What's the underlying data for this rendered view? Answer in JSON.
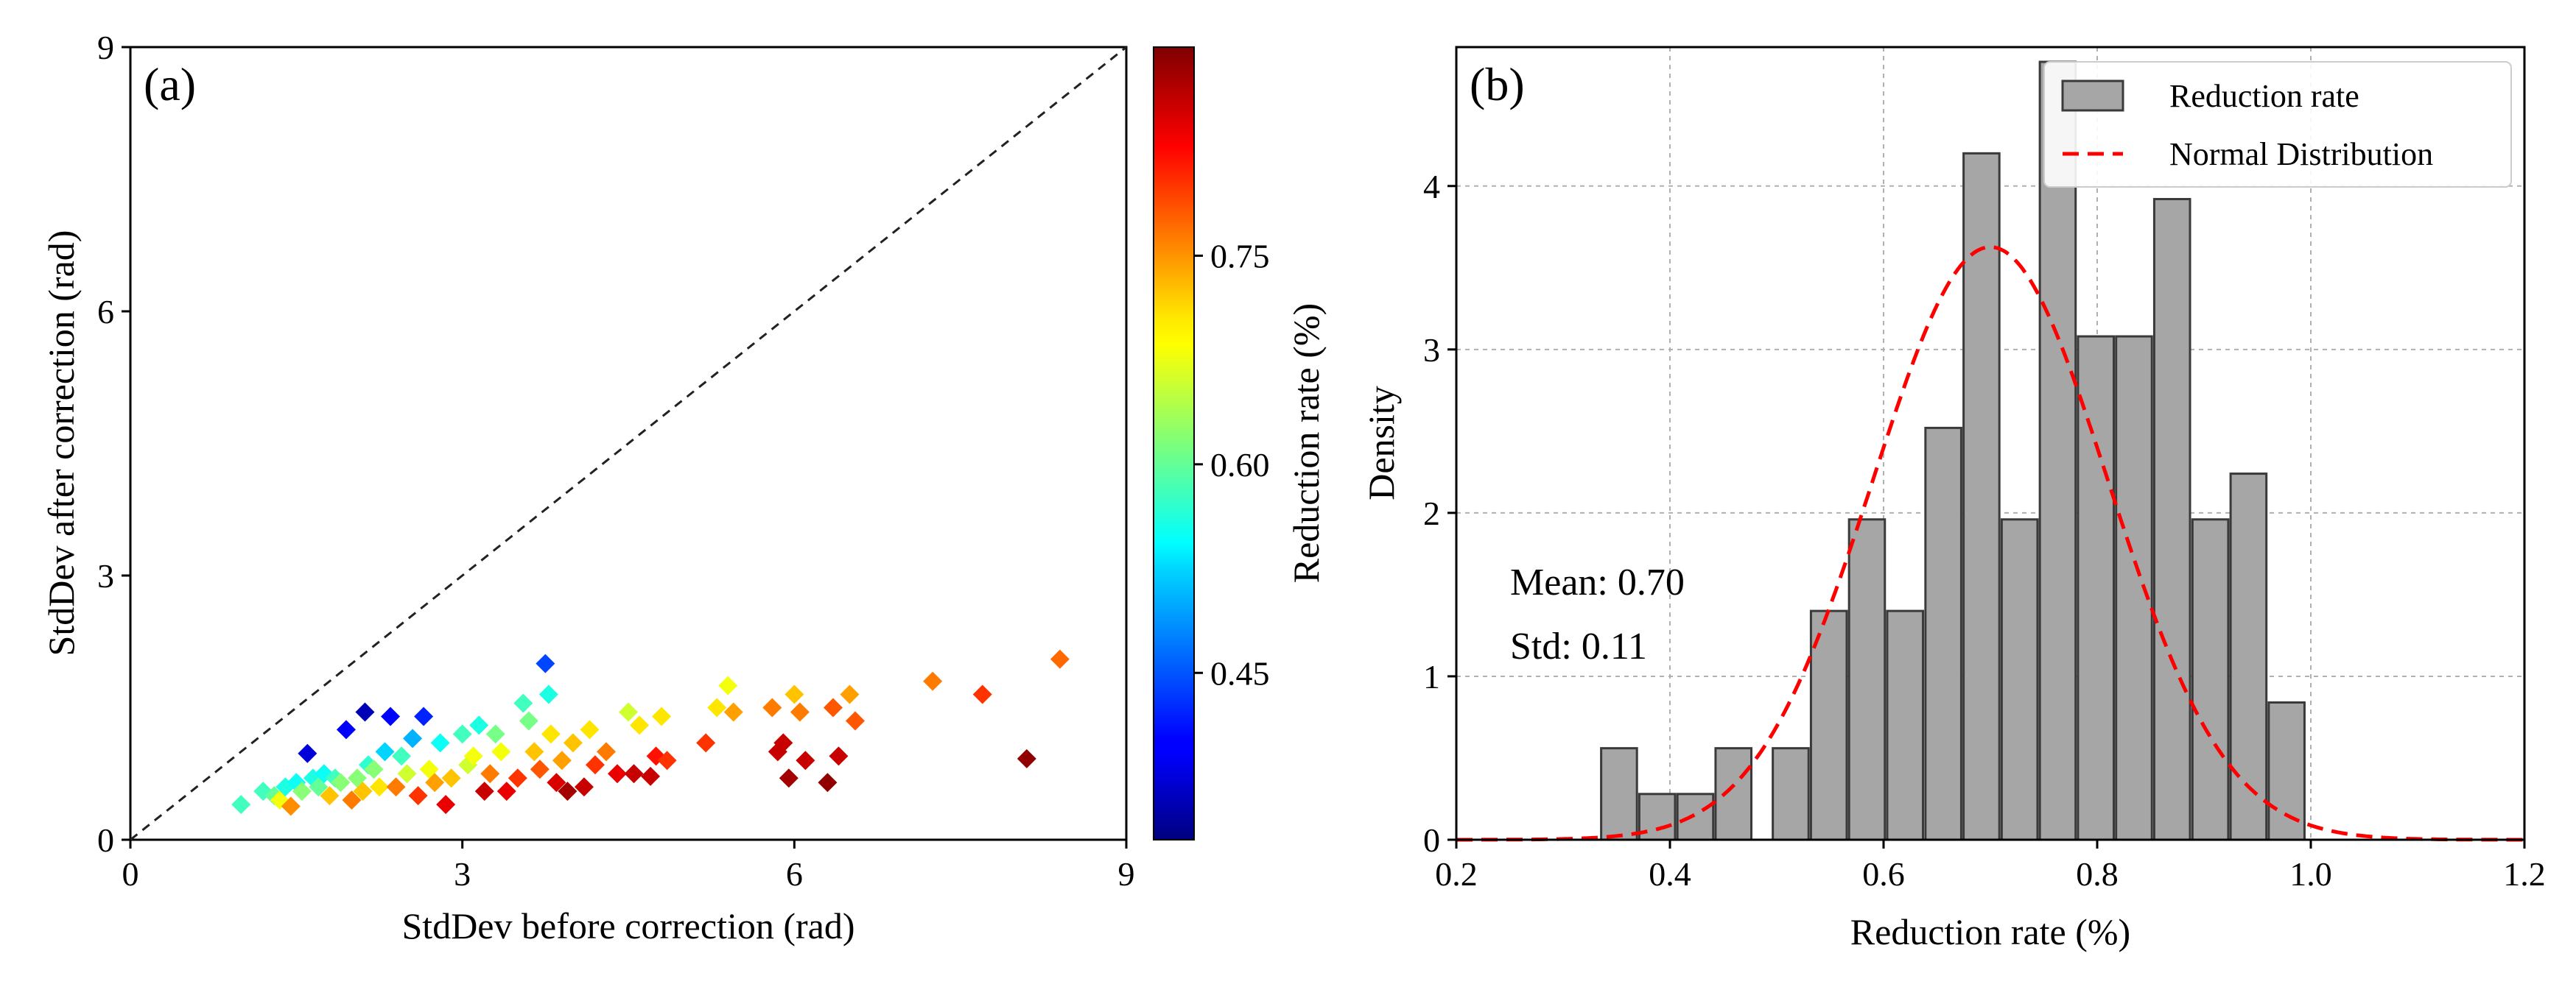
{
  "chart_data": [
    {
      "type": "scatter",
      "panel_label": "(a)",
      "xlabel": "StdDev before correction (rad)",
      "ylabel": "StdDev after correction (rad)",
      "xlim": [
        0,
        9
      ],
      "ylim": [
        0,
        9
      ],
      "xticks": [
        "0",
        "3",
        "6",
        "9"
      ],
      "yticks": [
        "0",
        "3",
        "6",
        "9"
      ],
      "reference_line": "y = x",
      "marker": "diamond",
      "colorbar": {
        "label": "Reduction rate (%)",
        "colormap": "jet",
        "range": [
          0.33,
          0.9
        ],
        "ticks": [
          "0.45",
          "0.60",
          "0.75"
        ]
      },
      "points": [
        [
          1.0,
          0.4,
          0.58
        ],
        [
          1.2,
          0.55,
          0.58
        ],
        [
          1.3,
          0.5,
          0.6
        ],
        [
          1.35,
          0.45,
          0.68
        ],
        [
          1.4,
          0.6,
          0.56
        ],
        [
          1.45,
          0.38,
          0.75
        ],
        [
          1.5,
          0.65,
          0.55
        ],
        [
          1.55,
          0.55,
          0.62
        ],
        [
          1.6,
          0.98,
          0.38
        ],
        [
          1.65,
          0.7,
          0.56
        ],
        [
          1.7,
          0.6,
          0.6
        ],
        [
          1.75,
          0.75,
          0.55
        ],
        [
          1.8,
          0.5,
          0.72
        ],
        [
          1.85,
          0.7,
          0.58
        ],
        [
          1.9,
          0.65,
          0.62
        ],
        [
          1.95,
          1.25,
          0.4
        ],
        [
          2.0,
          0.45,
          0.76
        ],
        [
          2.05,
          0.7,
          0.62
        ],
        [
          2.1,
          0.55,
          0.72
        ],
        [
          2.12,
          1.45,
          0.36
        ],
        [
          2.15,
          0.85,
          0.57
        ],
        [
          2.2,
          0.8,
          0.62
        ],
        [
          2.25,
          0.6,
          0.7
        ],
        [
          2.3,
          1.0,
          0.52
        ],
        [
          2.35,
          1.4,
          0.4
        ],
        [
          2.4,
          0.6,
          0.76
        ],
        [
          2.45,
          0.95,
          0.58
        ],
        [
          2.5,
          0.75,
          0.66
        ],
        [
          2.55,
          1.15,
          0.5
        ],
        [
          2.6,
          0.5,
          0.8
        ],
        [
          2.65,
          1.4,
          0.42
        ],
        [
          2.7,
          0.8,
          0.68
        ],
        [
          2.75,
          0.65,
          0.74
        ],
        [
          2.8,
          1.1,
          0.55
        ],
        [
          2.85,
          0.4,
          0.84
        ],
        [
          2.9,
          0.7,
          0.72
        ],
        [
          3.0,
          1.2,
          0.58
        ],
        [
          3.05,
          0.85,
          0.66
        ],
        [
          3.1,
          0.95,
          0.68
        ],
        [
          3.15,
          1.3,
          0.56
        ],
        [
          3.2,
          0.55,
          0.86
        ],
        [
          3.25,
          0.75,
          0.76
        ],
        [
          3.3,
          1.2,
          0.61
        ],
        [
          3.35,
          1.0,
          0.68
        ],
        [
          3.4,
          0.55,
          0.84
        ],
        [
          3.5,
          0.7,
          0.8
        ],
        [
          3.55,
          1.55,
          0.58
        ],
        [
          3.6,
          1.35,
          0.61
        ],
        [
          3.65,
          1.0,
          0.72
        ],
        [
          3.7,
          0.8,
          0.78
        ],
        [
          3.75,
          2.0,
          0.44
        ],
        [
          3.78,
          1.65,
          0.56
        ],
        [
          3.8,
          1.2,
          0.7
        ],
        [
          3.85,
          0.65,
          0.85
        ],
        [
          3.9,
          0.9,
          0.74
        ],
        [
          3.95,
          0.55,
          0.88
        ],
        [
          4.0,
          1.1,
          0.72
        ],
        [
          4.1,
          0.6,
          0.86
        ],
        [
          4.15,
          1.25,
          0.7
        ],
        [
          4.2,
          0.85,
          0.8
        ],
        [
          4.3,
          1.0,
          0.76
        ],
        [
          4.4,
          0.75,
          0.84
        ],
        [
          4.5,
          1.45,
          0.66
        ],
        [
          4.55,
          0.75,
          0.86
        ],
        [
          4.6,
          1.3,
          0.7
        ],
        [
          4.7,
          0.72,
          0.86
        ],
        [
          4.75,
          0.95,
          0.82
        ],
        [
          4.8,
          1.4,
          0.7
        ],
        [
          4.85,
          0.9,
          0.8
        ],
        [
          5.2,
          1.1,
          0.8
        ],
        [
          5.3,
          1.5,
          0.7
        ],
        [
          5.4,
          1.75,
          0.68
        ],
        [
          5.45,
          1.45,
          0.74
        ],
        [
          5.8,
          1.5,
          0.76
        ],
        [
          5.85,
          1.0,
          0.86
        ],
        [
          5.9,
          1.1,
          0.86
        ],
        [
          5.95,
          0.7,
          0.88
        ],
        [
          6.0,
          1.65,
          0.72
        ],
        [
          6.05,
          1.45,
          0.76
        ],
        [
          6.1,
          0.9,
          0.86
        ],
        [
          6.3,
          0.65,
          0.89
        ],
        [
          6.35,
          1.5,
          0.78
        ],
        [
          6.4,
          0.95,
          0.86
        ],
        [
          6.5,
          1.65,
          0.74
        ],
        [
          6.55,
          1.35,
          0.78
        ],
        [
          7.25,
          1.8,
          0.76
        ],
        [
          7.7,
          1.65,
          0.8
        ],
        [
          8.1,
          0.92,
          0.89
        ],
        [
          8.4,
          2.05,
          0.77
        ]
      ]
    },
    {
      "type": "bar",
      "subtype": "histogram",
      "panel_label": "(b)",
      "xlabel": "Reduction rate (%)",
      "ylabel": "Density",
      "xlim": [
        0.2,
        1.2
      ],
      "ylim": [
        0,
        4.85
      ],
      "xticks": [
        "0.2",
        "0.4",
        "0.6",
        "0.8",
        "1.0",
        "1.2"
      ],
      "yticks": [
        "0",
        "1",
        "2",
        "3",
        "4"
      ],
      "grid": true,
      "bin_width": 0.0357,
      "bins": [
        {
          "x0": 0.3393,
          "value": 0.56
        },
        {
          "x0": 0.375,
          "value": 0.28
        },
        {
          "x0": 0.4107,
          "value": 0.28
        },
        {
          "x0": 0.4464,
          "value": 0.0
        },
        {
          "x0": 0.4464,
          "value": 0.56
        },
        {
          "x0": 0.4821,
          "value": 0.0
        },
        {
          "x0": 0.5,
          "value": 0.56
        },
        {
          "x0": 0.5357,
          "value": 1.4
        },
        {
          "x0": 0.5714,
          "value": 1.96
        },
        {
          "x0": 0.6071,
          "value": 1.4
        },
        {
          "x0": 0.6429,
          "value": 2.52
        },
        {
          "x0": 0.6786,
          "value": 4.2
        },
        {
          "x0": 0.7143,
          "value": 1.96
        },
        {
          "x0": 0.75,
          "value": 4.76
        },
        {
          "x0": 0.7857,
          "value": 3.08
        },
        {
          "x0": 0.8214,
          "value": 3.08
        },
        {
          "x0": 0.8571,
          "value": 3.92
        },
        {
          "x0": 0.8929,
          "value": 1.96
        },
        {
          "x0": 0.9286,
          "value": 2.24
        },
        {
          "x0": 0.9643,
          "value": 0.84
        }
      ],
      "normal_fit": {
        "mean": 0.7,
        "std": 0.11
      },
      "legend": {
        "position": "top-right",
        "entries": [
          "Reduction rate",
          "Normal Distribution"
        ]
      },
      "annotations": {
        "mean": "Mean: 0.70",
        "std": "Std: 0.11"
      },
      "colors": {
        "bar_fill": "#a6a6a6",
        "bar_edge": "#3a3a3a",
        "normal_line": "#ff0000",
        "grid": "#b0b0b0"
      }
    }
  ]
}
